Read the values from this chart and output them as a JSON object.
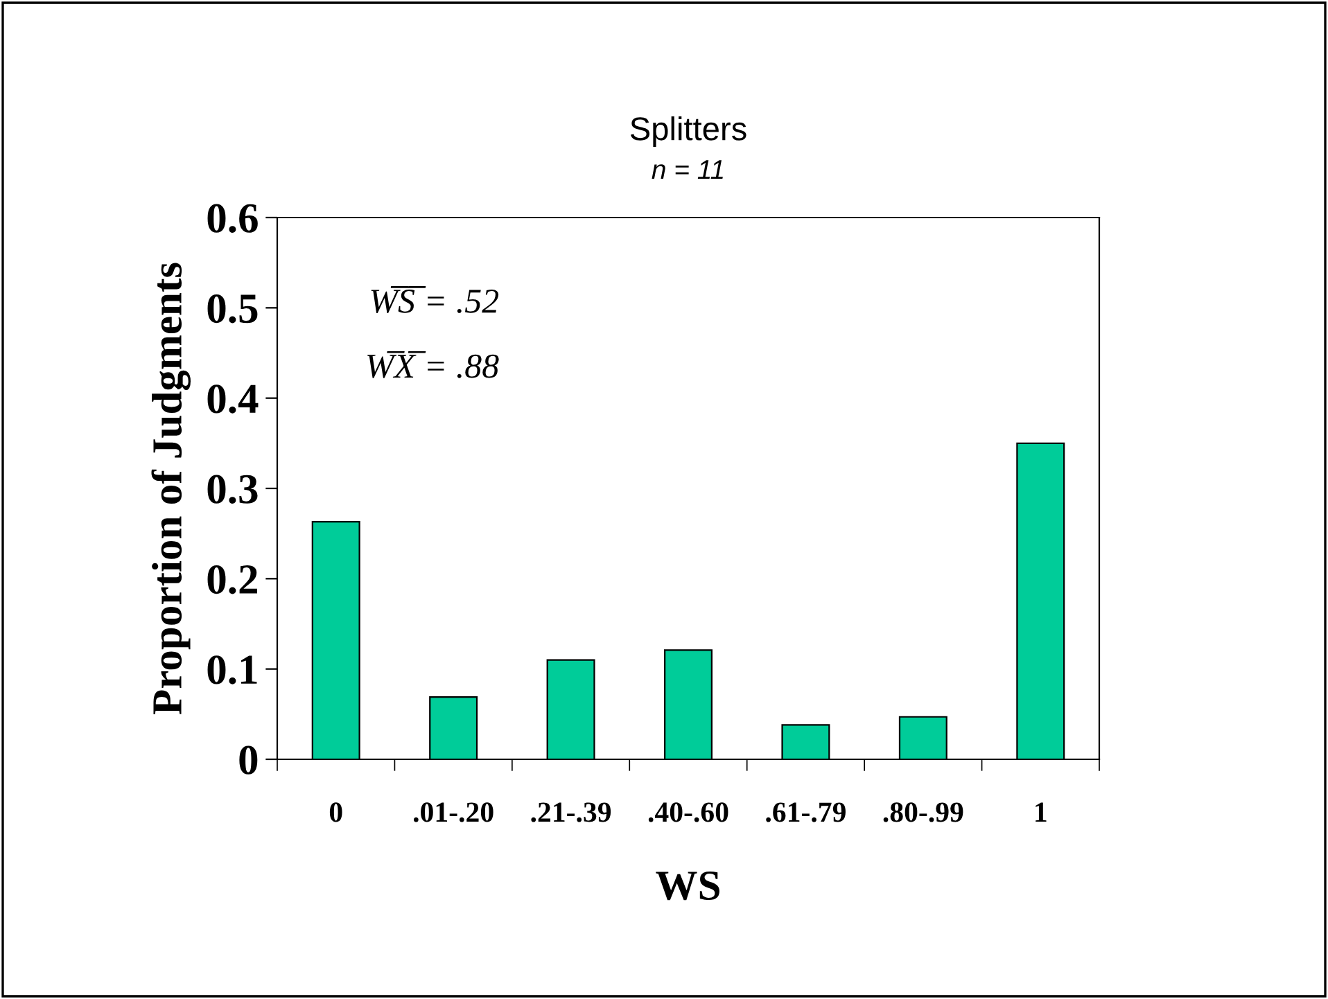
{
  "chart_data": {
    "type": "bar",
    "title": "Splitters",
    "subtitle": "n = 11",
    "xlabel": "WS",
    "ylabel": "Proportion of Judgments",
    "categories": [
      "0",
      ".01-.20",
      ".21-.39",
      ".40-.60",
      ".61-.79",
      ".80-.99",
      "1"
    ],
    "values": [
      0.263,
      0.069,
      0.11,
      0.121,
      0.038,
      0.047,
      0.35
    ],
    "color": "#00cc99",
    "ylim": [
      0,
      0.6
    ],
    "yticks": [
      0,
      0.1,
      0.2,
      0.3,
      0.4,
      0.5,
      0.6
    ],
    "annotations": [
      "W̅S̅ = .52",
      "W̅X̅ = .88"
    ],
    "grid": false,
    "legend": false
  }
}
